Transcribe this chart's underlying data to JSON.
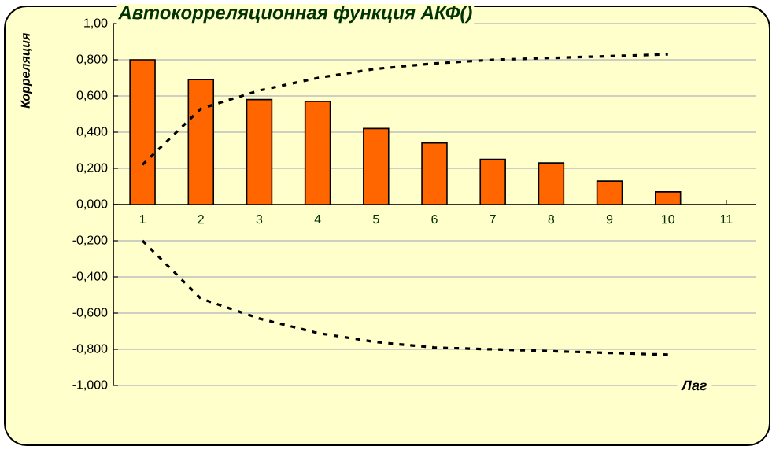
{
  "chart_data": {
    "type": "bar",
    "title": "Автокорреляционная функция АКФ()",
    "xlabel": "Лаг",
    "ylabel": "Корреляция",
    "categories": [
      "1",
      "2",
      "3",
      "4",
      "5",
      "6",
      "7",
      "8",
      "9",
      "10",
      "11"
    ],
    "series": [
      {
        "color": "#ff6600",
        "values": [
          0.8,
          0.69,
          0.58,
          0.57,
          0.42,
          0.34,
          0.25,
          0.23,
          0.13,
          0.07,
          null
        ]
      },
      {
        "type": "line",
        "color": "#000000",
        "line_style": "dashed",
        "values": [
          0.22,
          0.53,
          0.63,
          0.7,
          0.75,
          0.78,
          0.8,
          0.81,
          0.82,
          0.83,
          null
        ]
      },
      {
        "type": "line",
        "color": "#000000",
        "line_style": "dashed",
        "values": [
          -0.2,
          -0.52,
          -0.63,
          -0.71,
          -0.76,
          -0.79,
          -0.8,
          -0.81,
          -0.82,
          -0.83,
          null
        ]
      }
    ],
    "ylim": [
      -1,
      1
    ],
    "yticks": [
      {
        "value": -1,
        "label": "-1,000"
      },
      {
        "value": -0.8,
        "label": "-0,800"
      },
      {
        "value": -0.6,
        "label": "-0,600"
      },
      {
        "value": -0.4,
        "label": "-0,400"
      },
      {
        "value": -0.2,
        "label": "-0,200"
      },
      {
        "value": 0,
        "label": "0,000"
      },
      {
        "value": 0.2,
        "label": "0,200"
      },
      {
        "value": 0.4,
        "label": "0,400"
      },
      {
        "value": 0.6,
        "label": "0,600"
      },
      {
        "value": 0.8,
        "label": "0,800"
      },
      {
        "value": 1,
        "label": "1,00"
      }
    ],
    "grid": "y"
  }
}
